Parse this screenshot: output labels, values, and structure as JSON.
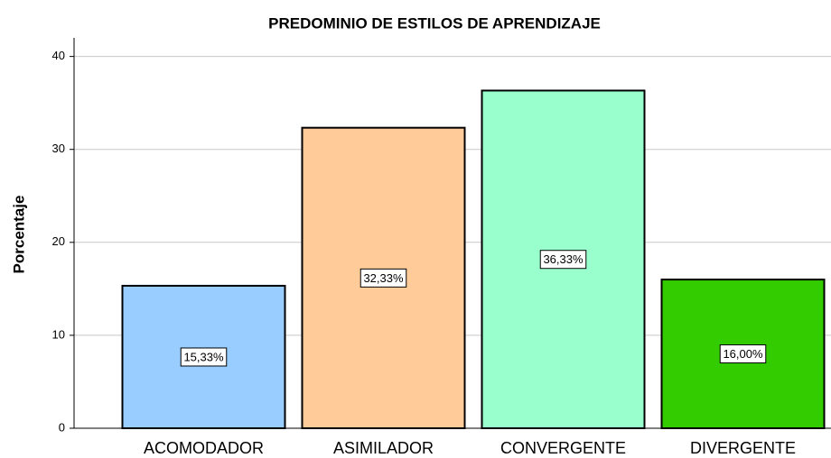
{
  "chart_data": {
    "type": "bar",
    "title": "PREDOMINIO DE ESTILOS DE APRENDIZAJE",
    "y_label": "Porcentaje",
    "categories": [
      "ACOMODADOR",
      "ASIMILADOR",
      "CONVERGENTE",
      "DIVERGENTE"
    ],
    "values": [
      15.33,
      32.33,
      36.33,
      16.0
    ],
    "value_labels": [
      "15,33%",
      "32,33%",
      "36,33%",
      "16,00%"
    ],
    "colors": [
      "#99ccff",
      "#ffcc99",
      "#99ffcc",
      "#33cc00"
    ],
    "ylim": [
      0,
      42
    ],
    "yticks": [
      0,
      10,
      20,
      30,
      40
    ],
    "grid": true
  }
}
